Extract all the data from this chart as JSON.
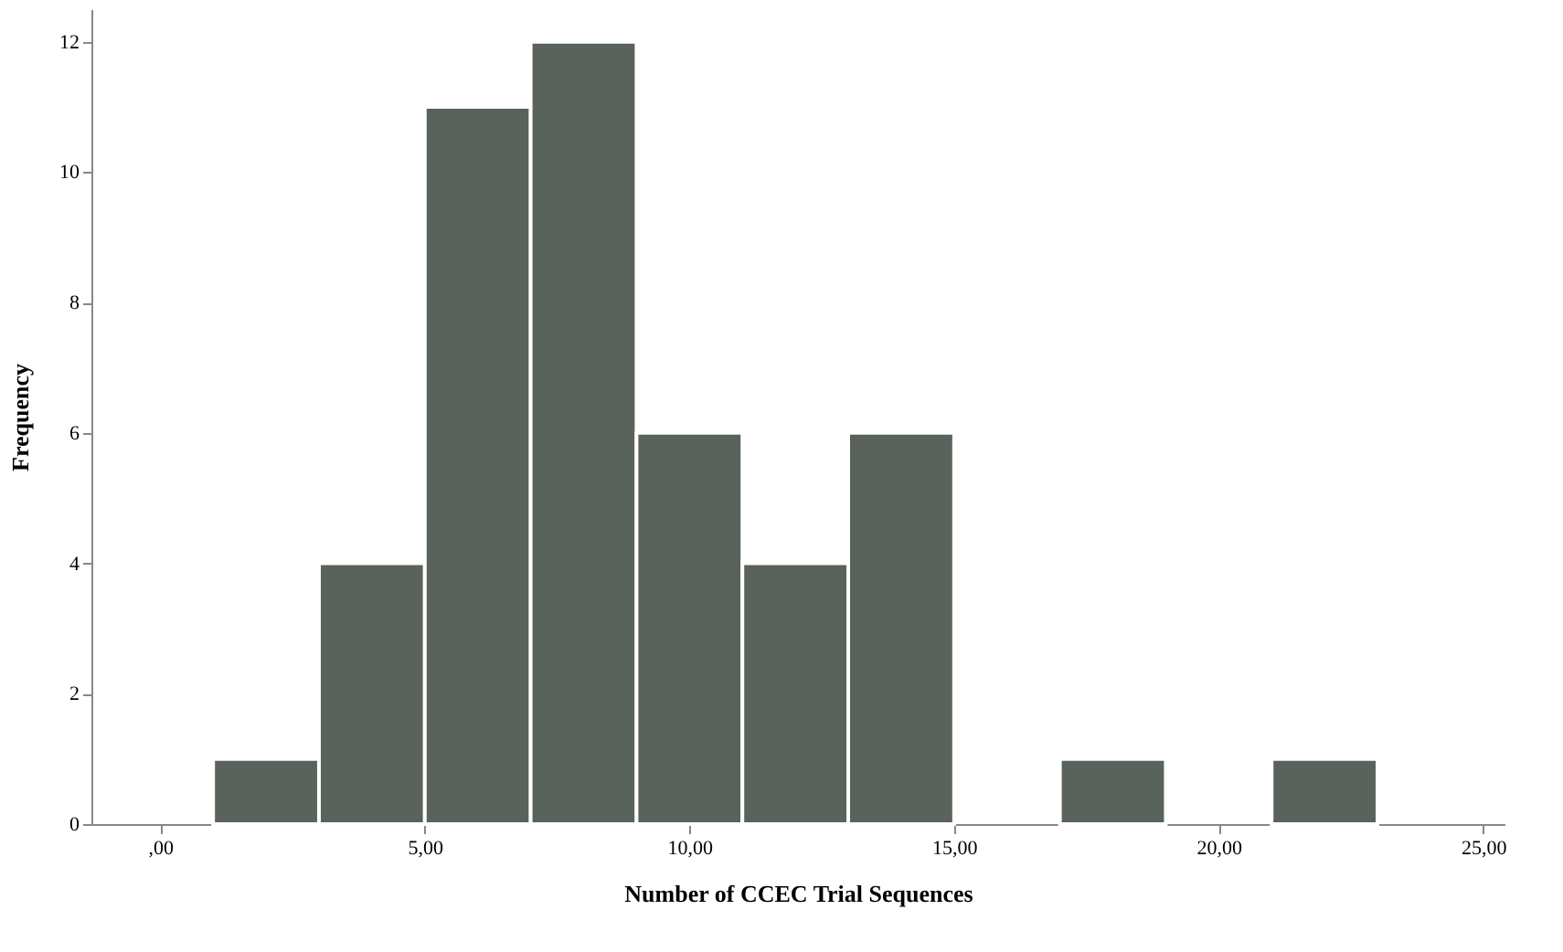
{
  "chart_data": {
    "type": "histogram",
    "xlabel": "Number of CCEC Trial Sequences",
    "ylabel": "Frequency",
    "bins": [
      1,
      3,
      5,
      7,
      9,
      11,
      13,
      15,
      17,
      19,
      21,
      23
    ],
    "values": [
      1,
      4,
      11,
      12,
      6,
      4,
      6,
      0,
      1,
      0,
      1
    ],
    "color": "#5a625c",
    "xlim": [
      -1.3,
      25.4
    ],
    "xticks": [
      {
        "value": 0,
        "label": ",00"
      },
      {
        "value": 5,
        "label": "5,00"
      },
      {
        "value": 10,
        "label": "10,00"
      },
      {
        "value": 15,
        "label": "15,00"
      },
      {
        "value": 20,
        "label": "20,00"
      },
      {
        "value": 25,
        "label": "25,00"
      }
    ],
    "ylim": [
      0,
      12.5
    ],
    "yticks": [
      0,
      2,
      4,
      6,
      8,
      10,
      12
    ],
    "grid": false
  }
}
